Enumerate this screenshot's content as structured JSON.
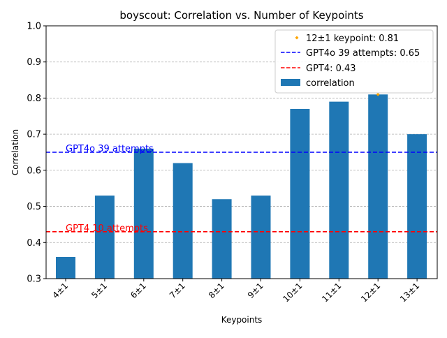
{
  "chart_data": {
    "type": "bar",
    "title": "boyscout: Correlation vs. Number of Keypoints",
    "xlabel": "Keypoints",
    "ylabel": "Correlation",
    "ylim": [
      0.3,
      1.0
    ],
    "yticks": [
      "0.3",
      "0.4",
      "0.5",
      "0.6",
      "0.7",
      "0.8",
      "0.9",
      "1.0"
    ],
    "grid": "y-dashed",
    "legend_position": "top-right",
    "categories": [
      "4±1",
      "5±1",
      "6±1",
      "7±1",
      "8±1",
      "9±1",
      "10±1",
      "11±1",
      "12±1",
      "13±1"
    ],
    "series": [
      {
        "name": "correlation",
        "color": "#1f77b4",
        "values": [
          0.36,
          0.53,
          0.66,
          0.62,
          0.52,
          0.53,
          0.77,
          0.79,
          0.81,
          0.7
        ]
      }
    ],
    "reference_lines": [
      {
        "legend": "GPT4o 39 attempts: 0.65",
        "value": 0.65,
        "color": "#0000ff",
        "annotation": "GPT4o 39 attempts"
      },
      {
        "legend": "GPT4: 0.43",
        "value": 0.43,
        "color": "#ff0000",
        "annotation": "GPT4 10 attempts"
      }
    ],
    "marker": {
      "legend": "12±1 keypoint: 0.81",
      "category": "12±1",
      "value": 0.81,
      "color": "#ffa500"
    }
  }
}
